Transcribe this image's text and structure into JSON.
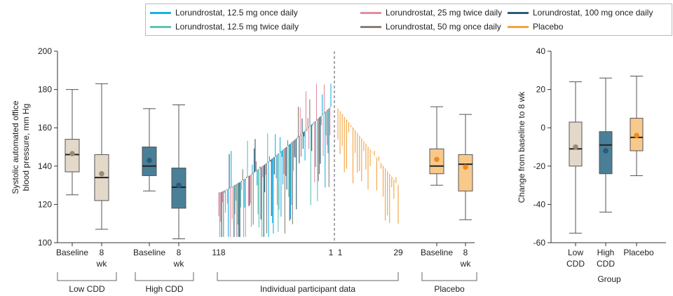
{
  "colors": {
    "lor_12_5_qd": "#1ab0e8",
    "lor_12_5_bid": "#5fc3b4",
    "lor_25_bid": "#e28ea0",
    "lor_50_qd": "#8a7f78",
    "lor_100_qd": "#2f5a73",
    "placebo": "#f3a33c",
    "low_cdd_fill": "#e3d9c9",
    "high_cdd_fill": "#4a7f98",
    "placebo_fill": "#f8c98b",
    "mean_low": "#9a8a7a",
    "mean_high": "#2f5a73",
    "mean_placebo": "#f08a20"
  },
  "legend": [
    {
      "label": "Lorundrostat, 12.5 mg once daily",
      "color": "#1ab0e8"
    },
    {
      "label": "Lorundrostat, 25 mg twice daily",
      "color": "#e28ea0"
    },
    {
      "label": "Lorundrostat, 100 mg once daily",
      "color": "#2f5a73"
    },
    {
      "label": "Lorundrostat, 12.5 mg twice daily",
      "color": "#5fc3b4"
    },
    {
      "label": "Lorundrostat, 50 mg once daily",
      "color": "#8a7f78"
    },
    {
      "label": "Placebo",
      "color": "#f3a33c"
    }
  ],
  "chart_data": [
    {
      "type": "box",
      "title": "",
      "ylabel": "Systolic automated office blood pressure, mm Hg",
      "ylim": [
        100,
        200
      ],
      "yticks": [
        100,
        120,
        140,
        160,
        180,
        200
      ],
      "groups": [
        {
          "name": "Low CDD",
          "boxes": [
            {
              "label": "Baseline",
              "min": 125,
              "q1": 137,
              "median": 146,
              "q3": 154,
              "max": 180,
              "mean": 146.5
            },
            {
              "label": "8 wk",
              "min": 107,
              "q1": 122,
              "median": 134,
              "q3": 146,
              "max": 183,
              "mean": 136
            }
          ]
        },
        {
          "name": "High CDD",
          "boxes": [
            {
              "label": "Baseline",
              "min": 127,
              "q1": 135,
              "median": 140,
              "q3": 150,
              "max": 170,
              "mean": 143
            },
            {
              "label": "8 wk",
              "min": 102,
              "q1": 118,
              "median": 129,
              "q3": 139,
              "max": 172,
              "mean": 130
            }
          ]
        },
        {
          "name": "Placebo",
          "boxes": [
            {
              "label": "Baseline",
              "min": 130,
              "q1": 136,
              "median": 140,
              "q3": 149,
              "max": 171,
              "mean": 143.5
            },
            {
              "label": "8 wk",
              "min": 112,
              "q1": 127,
              "median": 141,
              "q3": 146,
              "max": 167,
              "mean": 139.5
            }
          ]
        }
      ],
      "individual_participant_data": {
        "label": "Individual participant data",
        "lorundrostat_n": 118,
        "lorundrostat_axis_labels": [
          "118",
          "1"
        ],
        "lorundrostat_baseline_range": [
          126,
          171
        ],
        "lorundrostat_change_range": [
          -45,
          22
        ],
        "placebo_n": 29,
        "placebo_axis_labels": [
          "1",
          "29"
        ],
        "placebo_baseline_range": [
          170,
          130
        ],
        "placebo_change_range": [
          -30,
          4
        ]
      },
      "group_labels": [
        "Low CDD",
        "High CDD",
        "Individual participant data",
        "Placebo"
      ]
    },
    {
      "type": "box",
      "ylabel": "Change from baseline to 8 wk",
      "xlabel": "Group",
      "ylim": [
        -60,
        40
      ],
      "yticks": [
        -60,
        -40,
        -20,
        0,
        20,
        40
      ],
      "categories": [
        "Low CDD",
        "High CDD",
        "Placebo"
      ],
      "boxes": [
        {
          "label": "Low CDD",
          "min": -55,
          "q1": -20,
          "median": -11,
          "q3": 3,
          "max": 24,
          "mean": -10
        },
        {
          "label": "High CDD",
          "min": -44,
          "q1": -24,
          "median": -9,
          "q3": -2,
          "max": 26,
          "mean": -12
        },
        {
          "label": "Placebo",
          "min": -25,
          "q1": -12,
          "median": -5,
          "q3": 5,
          "max": 27,
          "mean": -4
        }
      ]
    }
  ],
  "tick_labels": {
    "baseline": "Baseline",
    "wk8_line1": "8",
    "wk8_line2": "wk",
    "low_line1": "Low",
    "high_line1": "High",
    "cdd_line2": "CDD",
    "placebo": "Placebo"
  }
}
